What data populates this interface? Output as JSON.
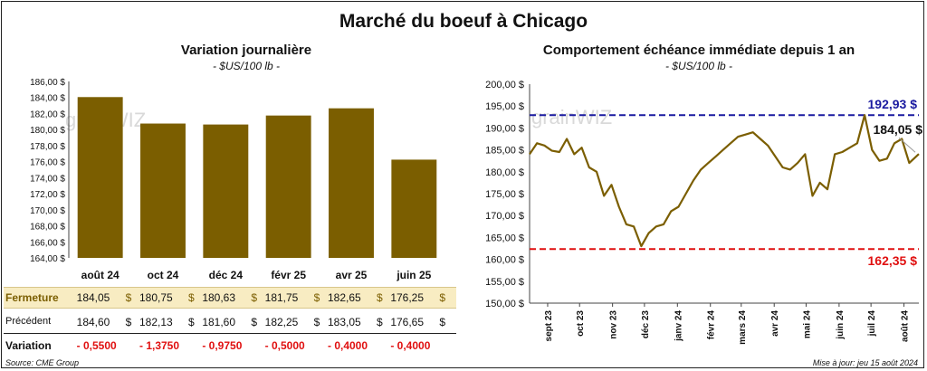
{
  "title": "Marché du boeuf à Chicago",
  "left_panel": {
    "title": "Variation journalière",
    "subtitle": "- $US/100 lb -",
    "table": {
      "row_fermeture": {
        "label": "Fermeture",
        "values": [
          "184,05",
          "180,75",
          "180,63",
          "181,75",
          "182,65",
          "176,25"
        ]
      },
      "row_precedent": {
        "label": "Précédent",
        "values": [
          "184,60",
          "182,13",
          "181,60",
          "182,25",
          "183,05",
          "176,65"
        ]
      },
      "row_variation": {
        "label": "Variation",
        "values": [
          "- 0,5500",
          "- 1,3750",
          "- 0,9750",
          "- 0,5000",
          "- 0,4000",
          "- 0,4000"
        ]
      },
      "currency": "$"
    }
  },
  "right_panel": {
    "title": "Comportement échéance immédiate depuis 1 an",
    "subtitle": "- $US/100 lb -",
    "annotations": {
      "high": "192,93 $",
      "low": "162,35 $",
      "last": "184,05 $"
    }
  },
  "source": "Source: CME Group",
  "updated": "Mise à jour: jeu 15 août 2024",
  "watermark": "grainWIZ",
  "colors": {
    "bar": "#7b5e00",
    "line": "#7b5e00",
    "high_line": "#1a1aa0",
    "low_line": "#e01010",
    "highlight_row": "#f8ecc2",
    "negative": "#e01010"
  },
  "chart_data": [
    {
      "type": "bar",
      "title": "Variation journalière",
      "subtitle": "- $US/100 lb -",
      "categories": [
        "août 24",
        "oct 24",
        "déc 24",
        "févr 25",
        "avr 25",
        "juin 25"
      ],
      "values": [
        184.05,
        180.75,
        180.63,
        181.75,
        182.65,
        176.25
      ],
      "ylim": [
        164,
        186
      ],
      "yticks": [
        "164,00 $",
        "166,00 $",
        "168,00 $",
        "170,00 $",
        "172,00 $",
        "174,00 $",
        "176,00 $",
        "178,00 $",
        "180,00 $",
        "182,00 $",
        "184,00 $",
        "186,00 $"
      ],
      "grid": false
    },
    {
      "type": "line",
      "title": "Comportement échéance immédiate depuis 1 an",
      "subtitle": "- $US/100 lb -",
      "ylim": [
        150,
        200
      ],
      "yticks": [
        "150,00 $",
        "155,00 $",
        "160,00 $",
        "165,00 $",
        "170,00 $",
        "175,00 $",
        "180,00 $",
        "185,00 $",
        "190,00 $",
        "195,00 $",
        "200,00 $"
      ],
      "xticks": [
        "sept 23",
        "oct 23",
        "nov 23",
        "déc 23",
        "janv 24",
        "févr 24",
        "mars 24",
        "avr 24",
        "mai 24",
        "juin 24",
        "juil 24",
        "août 24"
      ],
      "reference_lines": [
        {
          "value": 192.93,
          "label": "192,93 $"
        },
        {
          "value": 162.35,
          "label": "162,35 $"
        }
      ],
      "last_value": 184.05,
      "x": [
        "2023-08-15",
        "2023-08-22",
        "2023-08-29",
        "2023-09-05",
        "2023-09-12",
        "2023-09-19",
        "2023-09-26",
        "2023-10-03",
        "2023-10-10",
        "2023-10-17",
        "2023-10-24",
        "2023-10-31",
        "2023-11-07",
        "2023-11-14",
        "2023-11-21",
        "2023-11-28",
        "2023-12-05",
        "2023-12-12",
        "2023-12-19",
        "2023-12-26",
        "2024-01-02",
        "2024-01-09",
        "2024-01-16",
        "2024-01-23",
        "2024-01-30",
        "2024-02-06",
        "2024-02-13",
        "2024-02-20",
        "2024-02-27",
        "2024-03-05",
        "2024-03-12",
        "2024-03-19",
        "2024-03-26",
        "2024-04-02",
        "2024-04-09",
        "2024-04-16",
        "2024-04-23",
        "2024-04-30",
        "2024-05-07",
        "2024-05-14",
        "2024-05-21",
        "2024-05-28",
        "2024-06-04",
        "2024-06-11",
        "2024-06-18",
        "2024-06-25",
        "2024-07-02",
        "2024-07-09",
        "2024-07-16",
        "2024-07-23",
        "2024-07-30",
        "2024-08-06",
        "2024-08-15"
      ],
      "y": [
        184.0,
        186.5,
        186.0,
        184.8,
        184.5,
        187.5,
        184.0,
        185.5,
        181.0,
        180.0,
        174.5,
        177.0,
        172.0,
        168.0,
        167.5,
        163.0,
        166.0,
        167.5,
        168.0,
        171.0,
        172.0,
        175.0,
        178.0,
        180.5,
        182.0,
        183.5,
        185.0,
        186.5,
        188.0,
        188.5,
        189.0,
        187.5,
        186.0,
        183.5,
        181.0,
        180.5,
        182.0,
        184.0,
        174.5,
        177.5,
        176.0,
        184.0,
        184.5,
        185.5,
        186.5,
        192.93,
        185.0,
        182.5,
        183.0,
        186.5,
        187.5,
        182.0,
        184.05
      ]
    }
  ]
}
